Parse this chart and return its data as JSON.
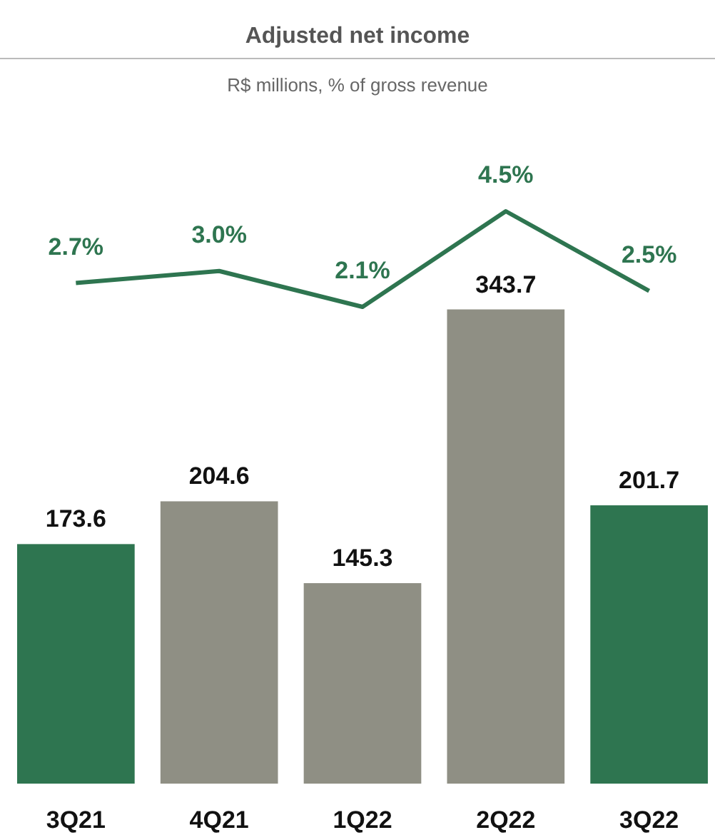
{
  "chart_data": {
    "type": "bar",
    "title": "Adjusted net income",
    "subtitle": "R$ millions, % of gross revenue",
    "categories": [
      "3Q21",
      "4Q21",
      "1Q22",
      "2Q22",
      "3Q22"
    ],
    "series": [
      {
        "values": [
          173.6,
          204.6,
          145.3,
          343.7,
          201.7
        ],
        "colors": [
          "#2e7550",
          "#8f8f84",
          "#8f8f84",
          "#8f8f84",
          "#2e7550"
        ]
      },
      {
        "type": "line",
        "axis": "y2",
        "color": "#2e7550",
        "values": [
          2.7,
          3.0,
          2.1,
          4.5,
          2.5
        ],
        "value_labels": [
          "2.7%",
          "3.0%",
          "2.1%",
          "4.5%",
          "2.5%"
        ]
      }
    ],
    "tick_labels": "x",
    "grid": false,
    "data_labels": true
  }
}
